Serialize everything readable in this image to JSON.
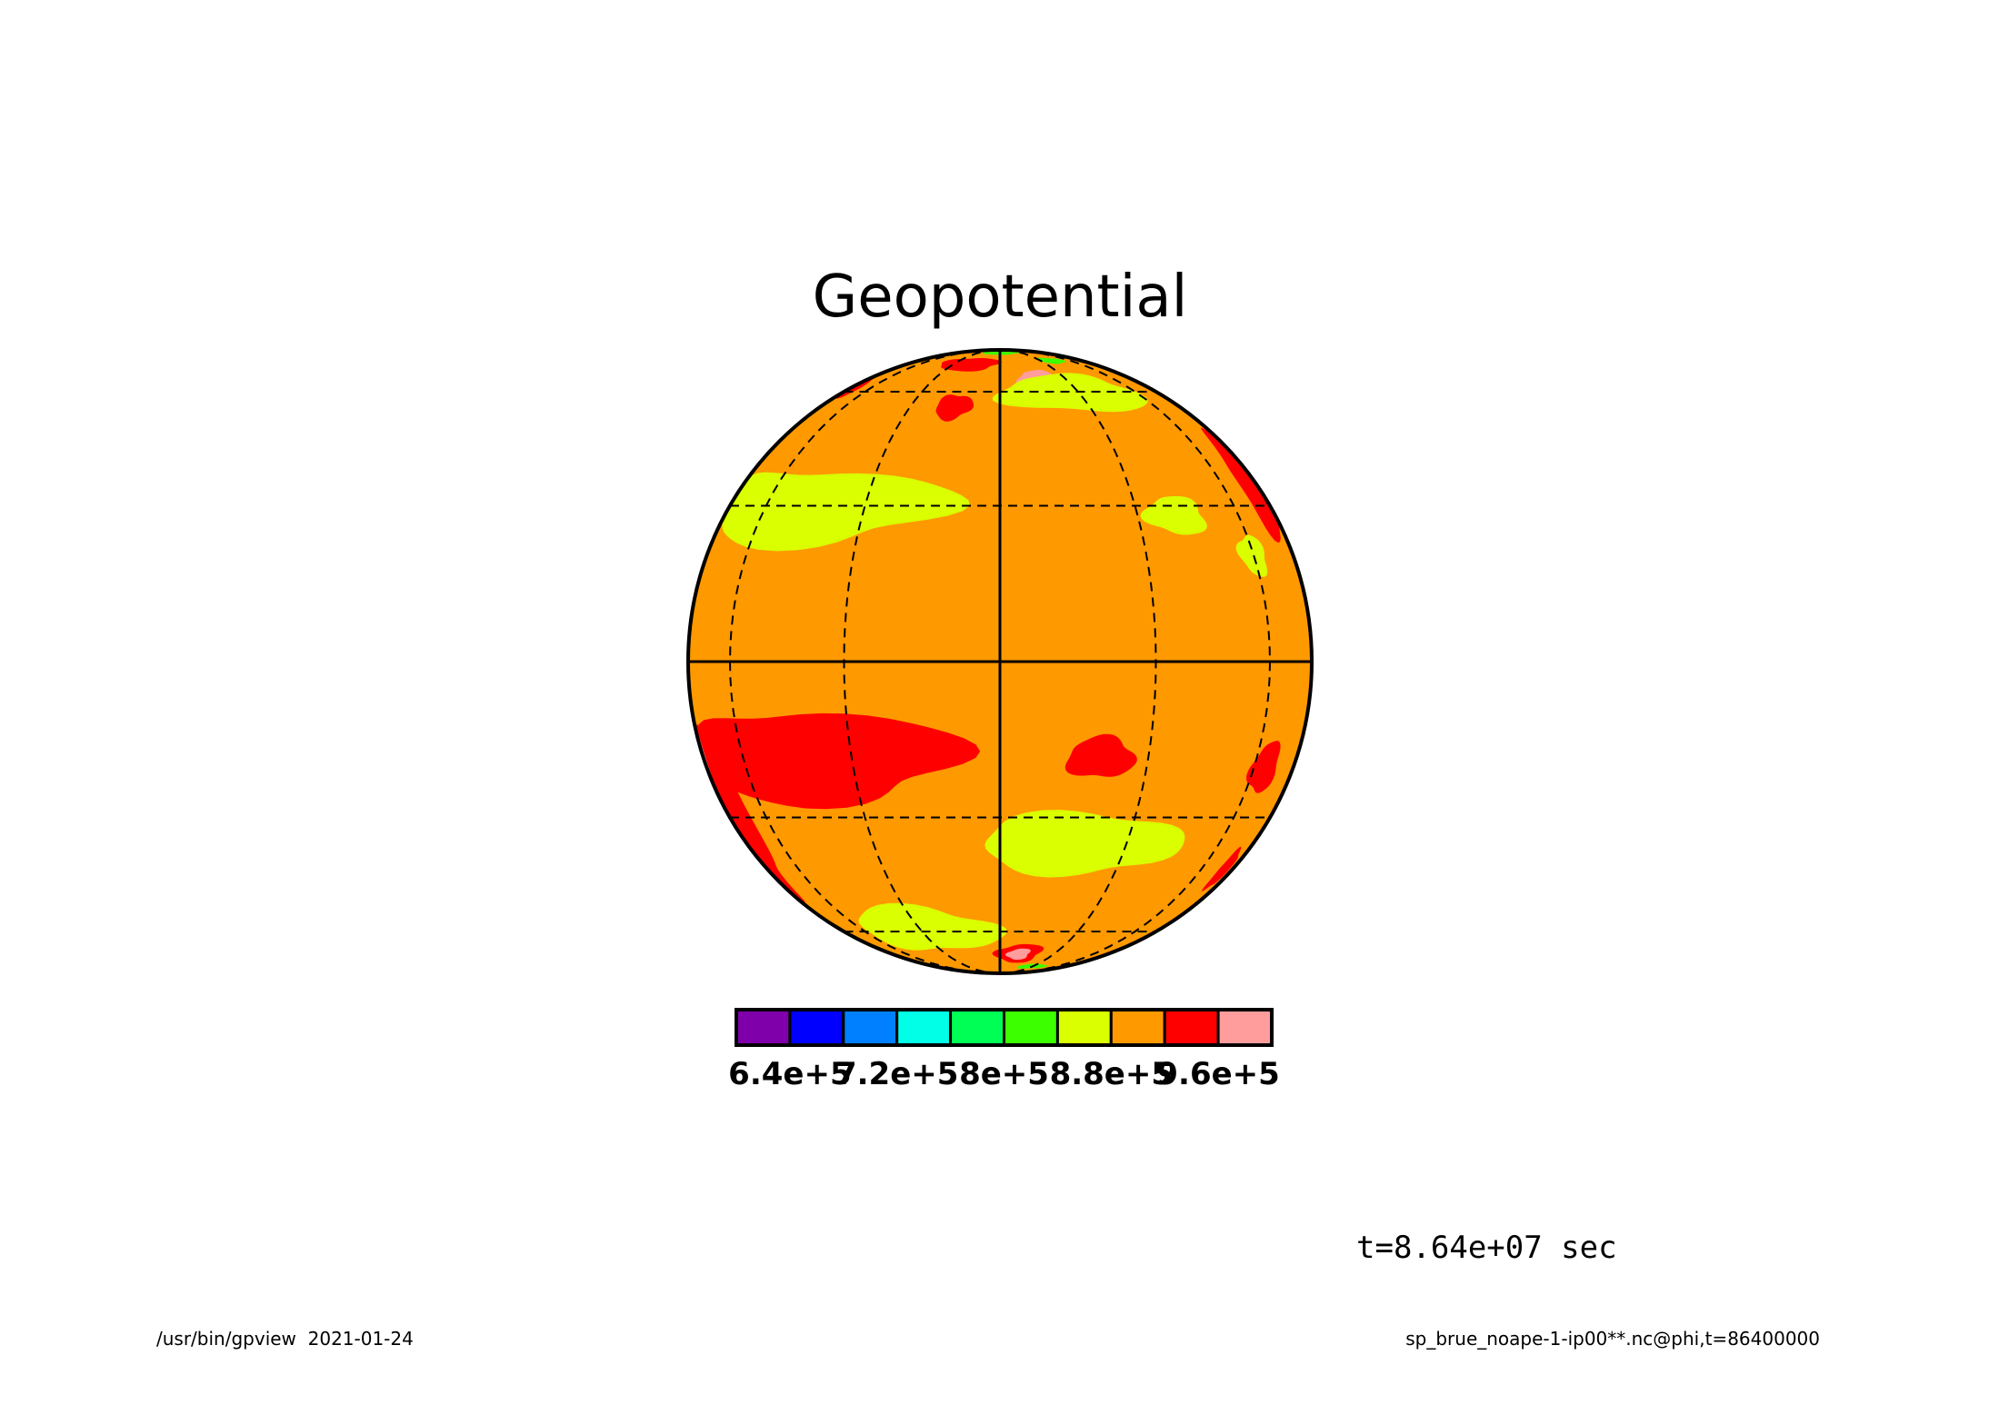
{
  "chart_data": {
    "type": "heatmap",
    "projection": "orthographic",
    "title": "Geopotential",
    "time_label": "t=8.64e+07 sec",
    "footer_left": "/usr/bin/gpview  2021-01-24",
    "footer_right": "sp_brue_noape-1-ip00**.nc@phi,t=86400000",
    "graticule": {
      "meridians_dashed": true,
      "parallels_dashed": true,
      "equator_solid": true,
      "central_meridian_solid": true
    },
    "colorbar": {
      "colors": [
        "#7f00aa",
        "#0000ff",
        "#0080ff",
        "#00ffe6",
        "#00ff55",
        "#3cff00",
        "#d9ff00",
        "#ff9900",
        "#ff0000",
        "#ff9c9c"
      ],
      "levels": [
        600000.0,
        640000.0,
        680000.0,
        720000.0,
        760000.0,
        800000.0,
        840000.0,
        880000.0,
        920000.0,
        960000.0,
        1000000.0
      ],
      "tick_labels": [
        "6.4e+5",
        "7.2e+5",
        "8e+5",
        "8.8e+5",
        "9.6e+5"
      ]
    },
    "background_color": "#ff9900",
    "field_regions": [
      {
        "level": "high",
        "color": "#ff0000",
        "lon": -45,
        "lat": -18,
        "rx": 38,
        "ry": 9
      },
      {
        "level": "high",
        "color": "#ff0000",
        "lon": -78,
        "lat": -30,
        "rx": 10,
        "ry": 18
      },
      {
        "level": "high",
        "color": "#ff0000",
        "lon": 80,
        "lat": 35,
        "rx": 12,
        "ry": 12
      },
      {
        "level": "high",
        "color": "#ff0000",
        "lon": 20,
        "lat": -18,
        "rx": 7,
        "ry": 4
      },
      {
        "level": "high",
        "color": "#ff0000",
        "lon": 65,
        "lat": -20,
        "rx": 6,
        "ry": 5
      },
      {
        "level": "high",
        "color": "#ff0000",
        "lon": 10,
        "lat": -70,
        "rx": 12,
        "ry": 5
      },
      {
        "level": "high",
        "color": "#ff0000",
        "lon": -20,
        "lat": 73,
        "rx": 20,
        "ry": 4
      },
      {
        "level": "high",
        "color": "#ff0000",
        "lon": -15,
        "lat": 55,
        "rx": 6,
        "ry": 4
      },
      {
        "level": "high",
        "color": "#ff0000",
        "lon": 75,
        "lat": -42,
        "rx": 5,
        "ry": 5
      },
      {
        "level": "high",
        "color": "#ff0000",
        "lon": -80,
        "lat": 62,
        "rx": 10,
        "ry": 5
      },
      {
        "level": "peak",
        "color": "#ff9c9c",
        "lon": 18,
        "lat": 65,
        "rx": 10,
        "ry": 4
      },
      {
        "level": "peak",
        "color": "#ff9c9c",
        "lon": 10,
        "lat": -70,
        "rx": 6,
        "ry": 3
      },
      {
        "level": "peak",
        "color": "#ff9c9c",
        "lon": -86,
        "lat": -20,
        "rx": 3,
        "ry": 8
      },
      {
        "level": "mid",
        "color": "#d9ff00",
        "lon": -50,
        "lat": 30,
        "rx": 40,
        "ry": 8
      },
      {
        "level": "mid",
        "color": "#d9ff00",
        "lon": 20,
        "lat": -36,
        "rx": 25,
        "ry": 7
      },
      {
        "level": "mid",
        "color": "#d9ff00",
        "lon": -30,
        "lat": -60,
        "rx": 30,
        "ry": 8
      },
      {
        "level": "mid",
        "color": "#d9ff00",
        "lon": 30,
        "lat": 60,
        "rx": 30,
        "ry": 7
      },
      {
        "level": "mid",
        "color": "#d9ff00",
        "lon": 40,
        "lat": 28,
        "rx": 8,
        "ry": 4
      },
      {
        "level": "mid",
        "color": "#d9ff00",
        "lon": 60,
        "lat": 20,
        "rx": 5,
        "ry": 4
      },
      {
        "level": "low",
        "color": "#3cff00",
        "lon": 0,
        "lat": 82,
        "rx": 25,
        "ry": 2
      },
      {
        "level": "low",
        "color": "#3cff00",
        "lon": 40,
        "lat": 75,
        "rx": 12,
        "ry": 2
      },
      {
        "level": "low",
        "color": "#3cff00",
        "lon": 30,
        "lat": -78,
        "rx": 15,
        "ry": 2
      }
    ]
  }
}
